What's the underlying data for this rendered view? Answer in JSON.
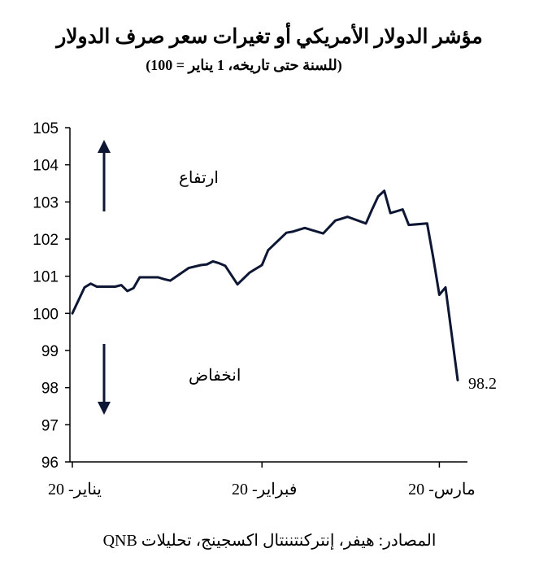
{
  "title": "مؤشر الدولار الأمريكي أو تغيرات سعر صرف الدولار",
  "subtitle": "(للسنة حتى تاريخه، 1 يناير = 100)",
  "source": "المصادر: هيفر، إنتركنتننتال اكسجينج، تحليلات QNB",
  "colors": {
    "line": "#0d1633",
    "axis": "#000000"
  },
  "chart_data": {
    "type": "line",
    "title": "مؤشر الدولار الأمريكي أو تغيرات سعر صرف الدولار",
    "subtitle": "(للسنة حتى تاريخه، 1 يناير = 100)",
    "xlabel": "",
    "ylabel": "",
    "ylim": [
      96,
      105
    ],
    "yticks": [
      96,
      97,
      98,
      99,
      100,
      101,
      102,
      103,
      104,
      105
    ],
    "xticks": [
      {
        "label": "يناير- 20",
        "x": 0
      },
      {
        "label": "فبراير- 20",
        "x": 31
      },
      {
        "label": "مارس- 20",
        "x": 60
      }
    ],
    "xlim": [
      0,
      63
    ],
    "grid": false,
    "legend": "none",
    "series": [
      {
        "x": [
          0,
          2,
          3,
          4,
          7,
          8,
          9,
          10,
          11,
          14,
          15,
          16,
          19,
          21,
          22,
          23,
          24,
          25,
          27,
          29,
          30,
          31,
          32,
          35,
          36,
          37,
          38,
          41,
          43,
          44,
          45,
          48,
          49,
          50,
          51,
          52,
          53,
          54,
          55,
          58,
          59,
          60,
          61,
          63
        ],
        "values": [
          100.0,
          100.7,
          100.8,
          100.72,
          100.72,
          100.76,
          100.6,
          100.68,
          100.97,
          100.97,
          100.92,
          100.88,
          101.22,
          101.3,
          101.32,
          101.4,
          101.35,
          101.28,
          100.78,
          101.1,
          101.2,
          101.3,
          101.7,
          102.17,
          102.2,
          102.25,
          102.3,
          102.15,
          102.5,
          102.55,
          102.6,
          102.42,
          102.8,
          103.15,
          103.3,
          102.7,
          102.75,
          102.8,
          102.38,
          102.42,
          101.5,
          100.5,
          100.7,
          98.2
        ]
      }
    ],
    "annotations": {
      "up_label": "ارتفاع",
      "down_label": "انخفاض",
      "last_value": "98.2"
    }
  }
}
